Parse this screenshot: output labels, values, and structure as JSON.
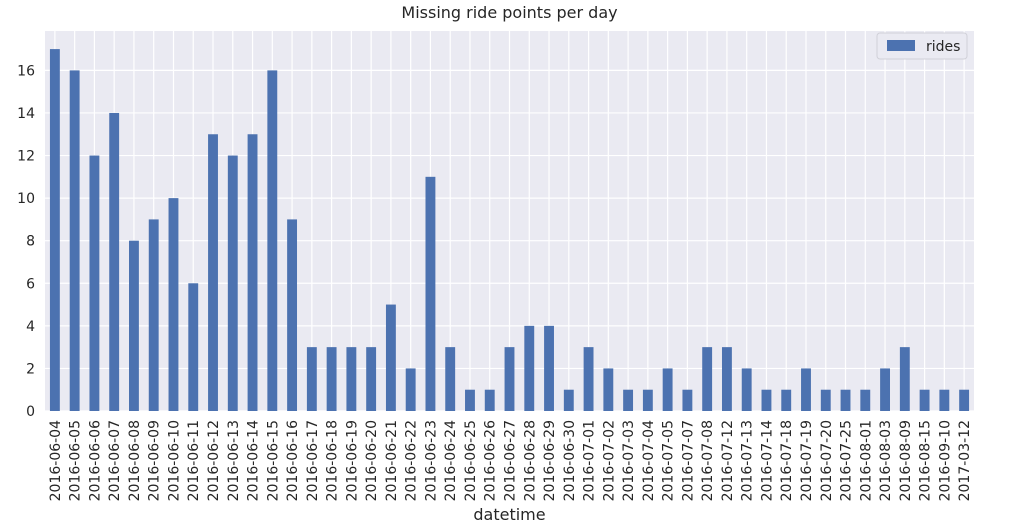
{
  "chart_data": {
    "type": "bar",
    "title": "Missing ride points per day",
    "xlabel": "datetime",
    "ylabel": "",
    "ylim": [
      0,
      17.85
    ],
    "yticks": [
      0,
      2,
      4,
      6,
      8,
      10,
      12,
      14,
      16
    ],
    "grid": true,
    "legend_position": "top-right",
    "categories": [
      "2016-06-04",
      "2016-06-05",
      "2016-06-06",
      "2016-06-07",
      "2016-06-08",
      "2016-06-09",
      "2016-06-10",
      "2016-06-11",
      "2016-06-12",
      "2016-06-13",
      "2016-06-14",
      "2016-06-15",
      "2016-06-16",
      "2016-06-17",
      "2016-06-18",
      "2016-06-19",
      "2016-06-20",
      "2016-06-21",
      "2016-06-22",
      "2016-06-23",
      "2016-06-24",
      "2016-06-25",
      "2016-06-26",
      "2016-06-27",
      "2016-06-28",
      "2016-06-29",
      "2016-06-30",
      "2016-07-01",
      "2016-07-02",
      "2016-07-03",
      "2016-07-04",
      "2016-07-05",
      "2016-07-07",
      "2016-07-08",
      "2016-07-12",
      "2016-07-13",
      "2016-07-14",
      "2016-07-18",
      "2016-07-19",
      "2016-07-20",
      "2016-07-25",
      "2016-08-01",
      "2016-08-03",
      "2016-08-09",
      "2016-08-15",
      "2016-09-10",
      "2017-03-12"
    ],
    "series": [
      {
        "name": "rides",
        "color": "#4c72b0",
        "values": [
          17,
          16,
          12,
          14,
          8,
          9,
          10,
          6,
          13,
          12,
          13,
          16,
          9,
          3,
          3,
          3,
          3,
          5,
          2,
          11,
          3,
          1,
          1,
          3,
          4,
          4,
          1,
          3,
          2,
          1,
          1,
          2,
          1,
          3,
          3,
          2,
          1,
          1,
          2,
          1,
          1,
          1,
          2,
          3,
          1,
          1,
          1
        ]
      }
    ]
  },
  "colors": {
    "plot_background": "#eaeaf2",
    "grid": "#ffffff",
    "bar": "#4c72b0"
  }
}
